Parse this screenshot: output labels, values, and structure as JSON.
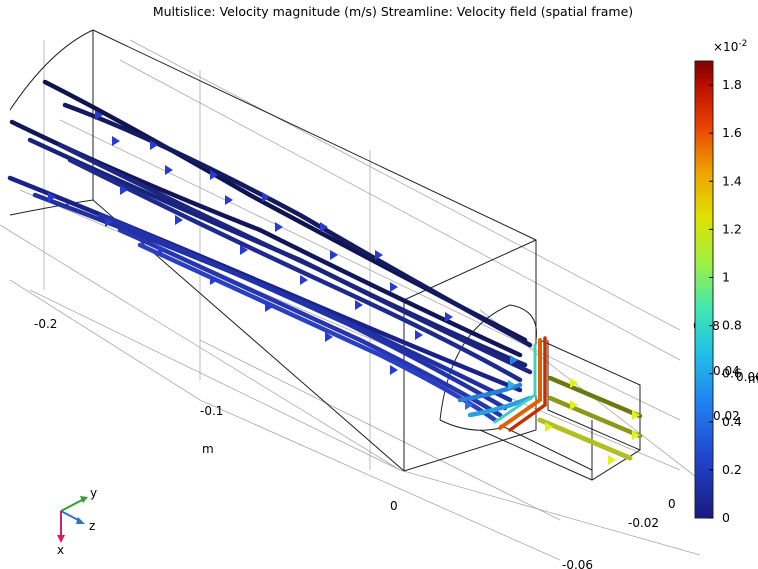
{
  "title": "Multislice: Velocity magnitude (m/s)  Streamline: Velocity field (spatial frame)",
  "axes": {
    "unit_label": "m",
    "x_ticks": [
      "-0.2",
      "-0.1"
    ],
    "y_ticks": [
      "0"
    ],
    "z_ticks": [
      "0",
      "-0.02",
      "-0.06"
    ],
    "right_ticks": [
      "0.08",
      "0.06",
      "0.04",
      "0.02"
    ],
    "right_unit": "m",
    "triad": {
      "x": "x",
      "y": "y",
      "z": "z"
    }
  },
  "chart_data": {
    "type": "3d-streamline-multislice",
    "title": "Multislice: Velocity magnitude (m/s)  Streamline: Velocity field (spatial frame)",
    "colorbar": {
      "colormap": "rainbow",
      "exponent_label": "×10",
      "exponent_power": "-2",
      "range": [
        0,
        0.019
      ],
      "ticks": [
        0,
        0.2,
        0.4,
        0.6,
        0.8,
        1,
        1.2,
        1.4,
        1.6,
        1.8
      ],
      "tick_labels": [
        "0",
        "0.2",
        "0.4",
        "0.6",
        "0.8",
        "1",
        "1.2",
        "1.4",
        "1.6",
        "1.8"
      ],
      "colors": [
        "#1a1a80",
        "#2050e0",
        "#20b0e0",
        "#30e0c0",
        "#80f080",
        "#d0f020",
        "#f0c000",
        "#f07000",
        "#e02000",
        "#8b0000"
      ]
    }
  }
}
